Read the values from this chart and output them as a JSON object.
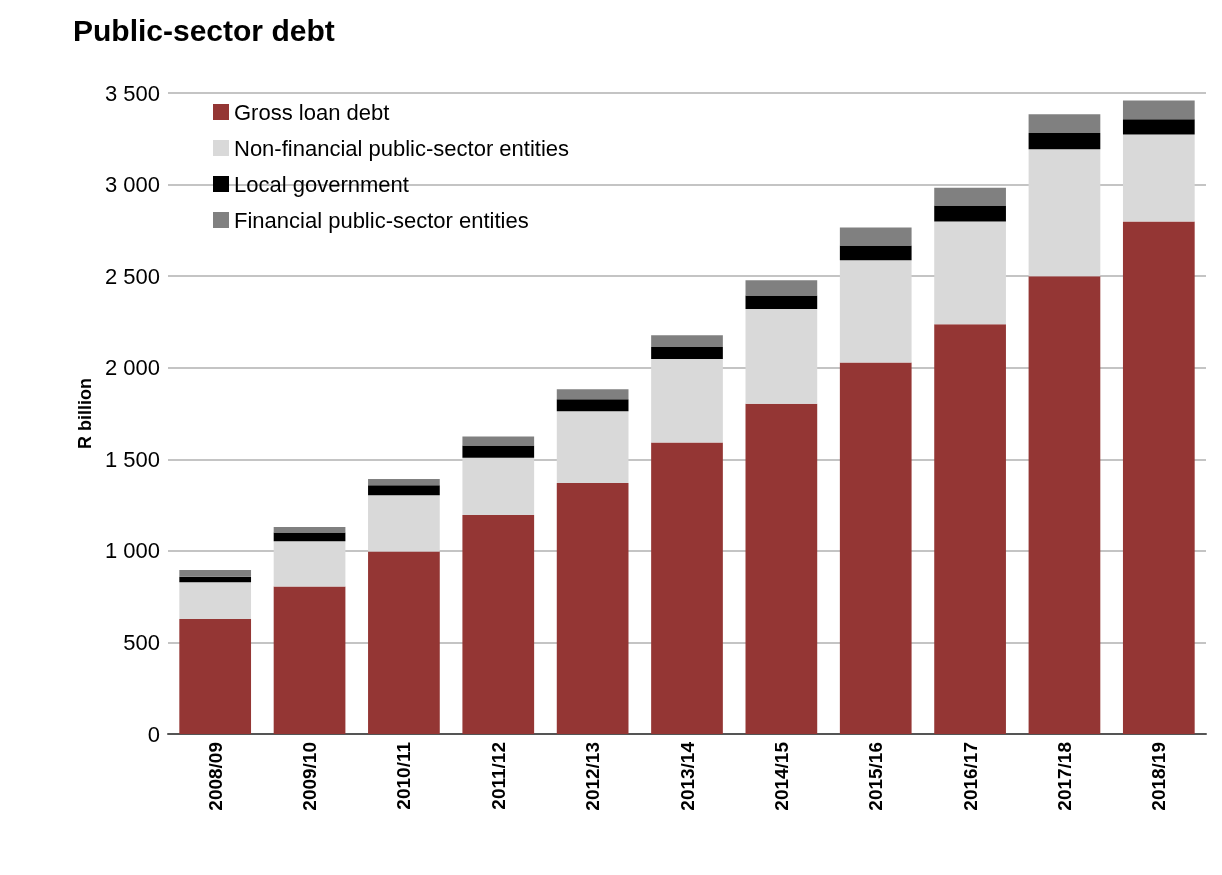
{
  "chart_data": {
    "type": "bar",
    "title": "Public-sector debt",
    "ylabel": "R billion",
    "stacked": true,
    "categories": [
      "2008/09",
      "2009/10",
      "2010/11",
      "2011/12",
      "2012/13",
      "2013/14",
      "2014/15",
      "2015/16",
      "2016/17",
      "2017/18",
      "2018/19"
    ],
    "series": [
      {
        "name": "Gross loan debt",
        "color": "#943634",
        "values": [
          628,
          805,
          997,
          1196,
          1371,
          1591,
          1803,
          2028,
          2237,
          2499,
          2798
        ]
      },
      {
        "name": "Non-financial public-sector entities",
        "color": "#d9d9d9",
        "values": [
          200,
          247,
          306,
          312,
          391,
          456,
          517,
          559,
          561,
          694,
          475
        ]
      },
      {
        "name": "Local government",
        "color": "#000000",
        "values": [
          30,
          48,
          55,
          67,
          66,
          66,
          74,
          80,
          88,
          88,
          83
        ]
      },
      {
        "name": "Financial public-sector entities",
        "color": "#808080",
        "values": [
          37,
          30,
          34,
          50,
          55,
          64,
          84,
          98,
          96,
          103,
          103
        ]
      }
    ],
    "ylim": [
      0,
      3500
    ],
    "yticks": [
      0,
      500,
      {
        "value": 1000,
        "label": "1 000"
      },
      {
        "value": 1500,
        "label": "1 500"
      },
      {
        "value": 2000,
        "label": "2 000"
      },
      {
        "value": 2500,
        "label": "2 500"
      },
      {
        "value": 3000,
        "label": "3 000"
      },
      {
        "value": 3500,
        "label": "3 500"
      }
    ],
    "grid": "y",
    "legend": "top left"
  }
}
